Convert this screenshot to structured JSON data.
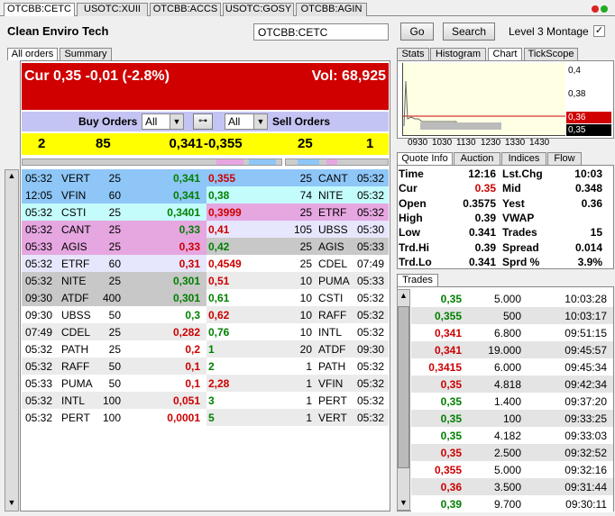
{
  "tabs": [
    "OTCBB:CETC",
    "USOTC:XUII",
    "OTCBB:ACCS",
    "USOTC:GOSY",
    "OTCBB:AGIN"
  ],
  "header": {
    "company": "Clean Enviro Tech",
    "symbol": "OTCBB:CETC",
    "go": "Go",
    "search": "Search",
    "montage": "Level 3 Montage"
  },
  "left_tabs": [
    "All orders",
    "Summary"
  ],
  "banner": {
    "cur": "Cur 0,35 -0,01 (-2.8%)",
    "vol": "Vol: 68,925"
  },
  "filter": {
    "buy": "Buy Orders",
    "buy_select": "All",
    "sell_select": "All",
    "sell": "Sell Orders"
  },
  "summary": [
    "2",
    "85",
    "0,341",
    "-0,355",
    "25",
    "1"
  ],
  "orders": [
    {
      "bid": [
        "05:32",
        "VERT",
        "25",
        "0,341"
      ],
      "bid_bg": "#8ec6f7",
      "bid_color": "#008000",
      "ask": [
        "0,355",
        "25",
        "CANT",
        "05:32"
      ],
      "ask_bg": "#8ec6f7",
      "ask_color": "#cc0000"
    },
    {
      "bid": [
        "12:05",
        "VFIN",
        "60",
        "0,341"
      ],
      "bid_bg": "#8ec6f7",
      "bid_color": "#008000",
      "ask": [
        "0,38",
        "74",
        "NITE",
        "05:32"
      ],
      "ask_bg": "#c4fcfc",
      "ask_color": "#008000"
    },
    {
      "bid": [
        "05:32",
        "CSTI",
        "25",
        "0,3401"
      ],
      "bid_bg": "#c4fcfc",
      "bid_color": "#008000",
      "ask": [
        "0,3999",
        "25",
        "ETRF",
        "05:32"
      ],
      "ask_bg": "#e6a6e0",
      "ask_color": "#cc0000"
    },
    {
      "bid": [
        "05:32",
        "CANT",
        "25",
        "0,33"
      ],
      "bid_bg": "#e6a6e0",
      "bid_color": "#008000",
      "ask": [
        "0,41",
        "105",
        "UBSS",
        "05:30"
      ],
      "ask_bg": "#e6e6fc",
      "ask_color": "#cc0000"
    },
    {
      "bid": [
        "05:33",
        "AGIS",
        "25",
        "0,33"
      ],
      "bid_bg": "#e6a6e0",
      "bid_color": "#cc0000",
      "ask": [
        "0,42",
        "25",
        "AGIS",
        "05:33"
      ],
      "ask_bg": "#c8c8c8",
      "ask_color": "#008000"
    },
    {
      "bid": [
        "05:32",
        "ETRF",
        "60",
        "0,31"
      ],
      "bid_bg": "#e6e6fc",
      "bid_color": "#cc0000",
      "ask": [
        "0,4549",
        "25",
        "CDEL",
        "07:49"
      ],
      "ask_bg": "#ffffff",
      "ask_color": "#cc0000"
    },
    {
      "bid": [
        "05:32",
        "NITE",
        "25",
        "0,301"
      ],
      "bid_bg": "#c8c8c8",
      "bid_color": "#008000",
      "ask": [
        "0,51",
        "10",
        "PUMA",
        "05:33"
      ],
      "ask_bg": "#ebebeb",
      "ask_color": "#cc0000"
    },
    {
      "bid": [
        "09:30",
        "ATDF",
        "400",
        "0,301"
      ],
      "bid_bg": "#c8c8c8",
      "bid_color": "#008000",
      "ask": [
        "0,61",
        "10",
        "CSTI",
        "05:32"
      ],
      "ask_bg": "#ffffff",
      "ask_color": "#008000"
    },
    {
      "bid": [
        "09:30",
        "UBSS",
        "50",
        "0,3"
      ],
      "bid_bg": "#ffffff",
      "bid_color": "#008000",
      "ask": [
        "0,62",
        "10",
        "RAFF",
        "05:32"
      ],
      "ask_bg": "#ebebeb",
      "ask_color": "#cc0000"
    },
    {
      "bid": [
        "07:49",
        "CDEL",
        "25",
        "0,282"
      ],
      "bid_bg": "#ebebeb",
      "bid_color": "#cc0000",
      "ask": [
        "0,76",
        "10",
        "INTL",
        "05:32"
      ],
      "ask_bg": "#ffffff",
      "ask_color": "#008000"
    },
    {
      "bid": [
        "05:32",
        "PATH",
        "25",
        "0,2"
      ],
      "bid_bg": "#ffffff",
      "bid_color": "#cc0000",
      "ask": [
        "1",
        "20",
        "ATDF",
        "09:30"
      ],
      "ask_bg": "#ebebeb",
      "ask_color": "#008000"
    },
    {
      "bid": [
        "05:32",
        "RAFF",
        "50",
        "0,1"
      ],
      "bid_bg": "#ebebeb",
      "bid_color": "#cc0000",
      "ask": [
        "2",
        "1",
        "PATH",
        "05:32"
      ],
      "ask_bg": "#ffffff",
      "ask_color": "#008000"
    },
    {
      "bid": [
        "05:33",
        "PUMA",
        "50",
        "0,1"
      ],
      "bid_bg": "#ffffff",
      "bid_color": "#cc0000",
      "ask": [
        "2,28",
        "1",
        "VFIN",
        "05:32"
      ],
      "ask_bg": "#ebebeb",
      "ask_color": "#cc0000"
    },
    {
      "bid": [
        "05:32",
        "INTL",
        "100",
        "0,051"
      ],
      "bid_bg": "#ebebeb",
      "bid_color": "#cc0000",
      "ask": [
        "3",
        "1",
        "PERT",
        "05:32"
      ],
      "ask_bg": "#ffffff",
      "ask_color": "#008000"
    },
    {
      "bid": [
        "05:32",
        "PERT",
        "100",
        "0,0001"
      ],
      "bid_bg": "#ffffff",
      "bid_color": "#cc0000",
      "ask": [
        "5",
        "1",
        "VERT",
        "05:32"
      ],
      "ask_bg": "#ebebeb",
      "ask_color": "#008000"
    }
  ],
  "right_tabs": [
    "Stats",
    "Histogram",
    "Chart",
    "TickScope"
  ],
  "chart": {
    "ylabels": [
      "0,4",
      "0,38",
      "0,36",
      "0,35"
    ],
    "xlabels": [
      "0930",
      "1030",
      "1130",
      "1230",
      "1330",
      "1430"
    ]
  },
  "quote_tabs": [
    "Quote Info",
    "Auction",
    "Indices",
    "Flow"
  ],
  "quote": [
    {
      "cells": [
        "Time",
        "12:16",
        "Lst.Chg",
        "10:03"
      ]
    },
    {
      "cells": [
        "Cur",
        "0.35",
        "Mid",
        "0.348"
      ],
      "color": "#cc0000"
    },
    {
      "cells": [
        "Open",
        "0.3575",
        "Yest",
        "0.36"
      ]
    },
    {
      "cells": [
        "High",
        "0.39",
        "VWAP"
      ]
    },
    {
      "cells": [
        "Low",
        "0.341",
        "Trades",
        "15"
      ]
    },
    {
      "cells": [
        "Trd.Hi",
        "0.39",
        "Spread",
        "0.014"
      ]
    },
    {
      "cells": [
        "Trd.Lo",
        "0.341",
        "Sprd %",
        "3.9%"
      ]
    }
  ],
  "trades": {
    "tab": "Trades",
    "rows": [
      {
        "price": "0,35",
        "size": "5.000",
        "time": "10:03:28",
        "color": "#008000"
      },
      {
        "price": "0,355",
        "size": "500",
        "time": "10:03:17",
        "color": "#008000"
      },
      {
        "price": "0,341",
        "size": "6.800",
        "time": "09:51:15",
        "color": "#cc0000"
      },
      {
        "price": "0,341",
        "size": "19.000",
        "time": "09:45:57",
        "color": "#cc0000"
      },
      {
        "price": "0,3415",
        "size": "6.000",
        "time": "09:45:34",
        "color": "#cc0000"
      },
      {
        "price": "0,35",
        "size": "4.818",
        "time": "09:42:34",
        "color": "#cc0000"
      },
      {
        "price": "0,35",
        "size": "1.400",
        "time": "09:37:20",
        "color": "#008000"
      },
      {
        "price": "0,35",
        "size": "100",
        "time": "09:33:25",
        "color": "#008000"
      },
      {
        "price": "0,35",
        "size": "4.182",
        "time": "09:33:03",
        "color": "#008000"
      },
      {
        "price": "0,35",
        "size": "2.500",
        "time": "09:32:52",
        "color": "#cc0000"
      },
      {
        "price": "0,355",
        "size": "5.000",
        "time": "09:32:16",
        "color": "#cc0000"
      },
      {
        "price": "0,36",
        "size": "3.500",
        "time": "09:31:44",
        "color": "#cc0000"
      },
      {
        "price": "0,39",
        "size": "9.700",
        "time": "09:30:11",
        "color": "#008000"
      }
    ]
  }
}
